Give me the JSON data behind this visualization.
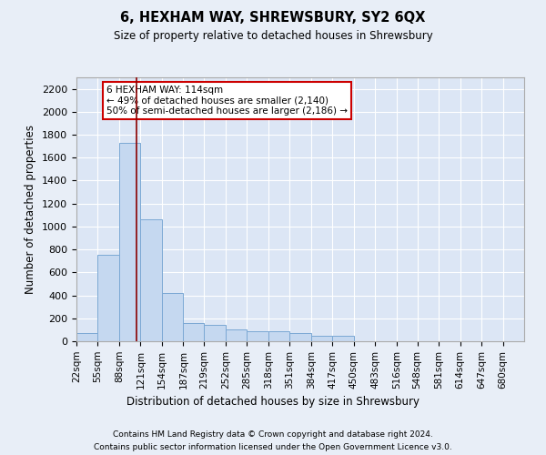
{
  "title": "6, HEXHAM WAY, SHREWSBURY, SY2 6QX",
  "subtitle": "Size of property relative to detached houses in Shrewsbury",
  "xlabel": "Distribution of detached houses by size in Shrewsbury",
  "ylabel": "Number of detached properties",
  "footer_line1": "Contains HM Land Registry data © Crown copyright and database right 2024.",
  "footer_line2": "Contains public sector information licensed under the Open Government Licence v3.0.",
  "bar_labels": [
    "22sqm",
    "55sqm",
    "88sqm",
    "121sqm",
    "154sqm",
    "187sqm",
    "219sqm",
    "252sqm",
    "285sqm",
    "318sqm",
    "351sqm",
    "384sqm",
    "417sqm",
    "450sqm",
    "483sqm",
    "516sqm",
    "548sqm",
    "581sqm",
    "614sqm",
    "647sqm",
    "680sqm"
  ],
  "bar_values": [
    75,
    755,
    1730,
    1060,
    420,
    155,
    145,
    105,
    90,
    85,
    70,
    50,
    50,
    0,
    0,
    0,
    0,
    0,
    0,
    0,
    0
  ],
  "bar_color": "#c5d8f0",
  "bar_edge_color": "#7ba8d4",
  "background_color": "#e8eef7",
  "axes_face_color": "#dce6f5",
  "grid_color": "#ffffff",
  "annotation_text": "6 HEXHAM WAY: 114sqm\n← 49% of detached houses are smaller (2,140)\n50% of semi-detached houses are larger (2,186) →",
  "annotation_box_color": "#ffffff",
  "annotation_box_edgecolor": "#cc0000",
  "vline_x": 114,
  "vline_color": "#8b0000",
  "ylim": [
    0,
    2300
  ],
  "yticks": [
    0,
    200,
    400,
    600,
    800,
    1000,
    1200,
    1400,
    1600,
    1800,
    2000,
    2200
  ],
  "bin_starts": [
    22,
    55,
    88,
    121,
    154,
    187,
    219,
    252,
    285,
    318,
    351,
    384,
    417,
    450,
    483,
    516,
    548,
    581,
    614,
    647,
    680
  ]
}
